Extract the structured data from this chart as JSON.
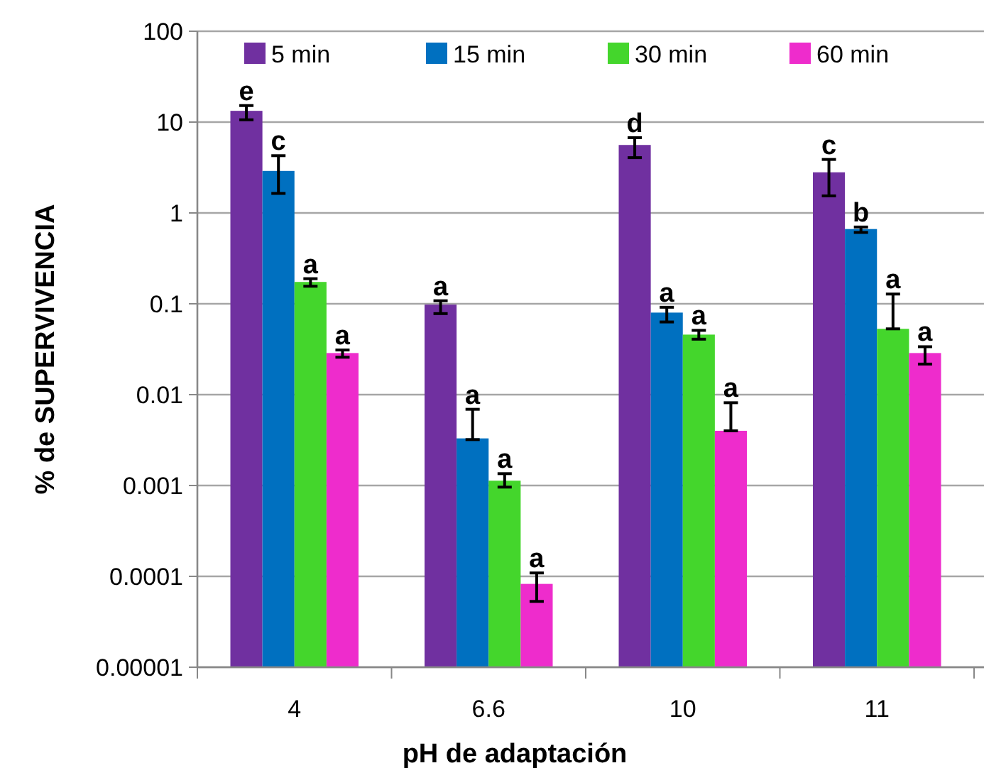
{
  "chart_data": {
    "type": "bar",
    "xlabel": "pH de adaptación",
    "ylabel": "% de SUPERVIVENCIA",
    "categories": [
      "4",
      "6.6",
      "10",
      "11"
    ],
    "log": true,
    "ylim": [
      1e-05,
      100
    ],
    "yticks": [
      {
        "value": 1e-05,
        "label": "0.00001"
      },
      {
        "value": 0.0001,
        "label": "0.0001"
      },
      0.001,
      0.01,
      0.1,
      1,
      10,
      100
    ],
    "grid": "y",
    "legend": "top",
    "series": [
      {
        "name": "5 min",
        "color": "#7030a0",
        "values": [
          13.3,
          0.098,
          5.6,
          2.8
        ],
        "errors": [
          [
            10.6,
            15.2
          ],
          [
            0.078,
            0.108
          ],
          [
            4.06,
            6.73
          ],
          [
            1.54,
            3.88
          ]
        ],
        "value_labels": [
          "e",
          "a",
          "d",
          "c"
        ]
      },
      {
        "name": "15 min",
        "color": "#0070c0",
        "values": [
          2.9,
          0.0033,
          0.08,
          0.665
        ],
        "errors": [
          [
            1.64,
            4.27
          ],
          [
            0.0032,
            0.0069
          ],
          [
            0.0631,
            0.0916
          ],
          [
            0.61,
            0.7
          ]
        ],
        "value_labels": [
          "c",
          "a",
          "a",
          "b"
        ]
      },
      {
        "name": "30 min",
        "color": "#44d62c",
        "values": [
          0.174,
          0.00113,
          0.0458,
          0.053
        ],
        "errors": [
          [
            0.156,
            0.189
          ],
          [
            0.00096,
            0.00135
          ],
          [
            0.0408,
            0.051
          ],
          [
            0.053,
            0.128
          ]
        ],
        "value_labels": [
          "a",
          "a",
          "a",
          "a"
        ]
      },
      {
        "name": "60 min",
        "color": "#ee2ccc",
        "values": [
          0.0287,
          8.26e-05,
          0.004,
          0.0287
        ],
        "errors": [
          [
            0.0258,
            0.031
          ],
          [
            5.3e-05,
            0.000109
          ],
          [
            0.004,
            0.00815
          ],
          [
            0.0217,
            0.0337
          ]
        ],
        "value_labels": [
          "a",
          "a",
          "a",
          "a"
        ]
      }
    ]
  }
}
